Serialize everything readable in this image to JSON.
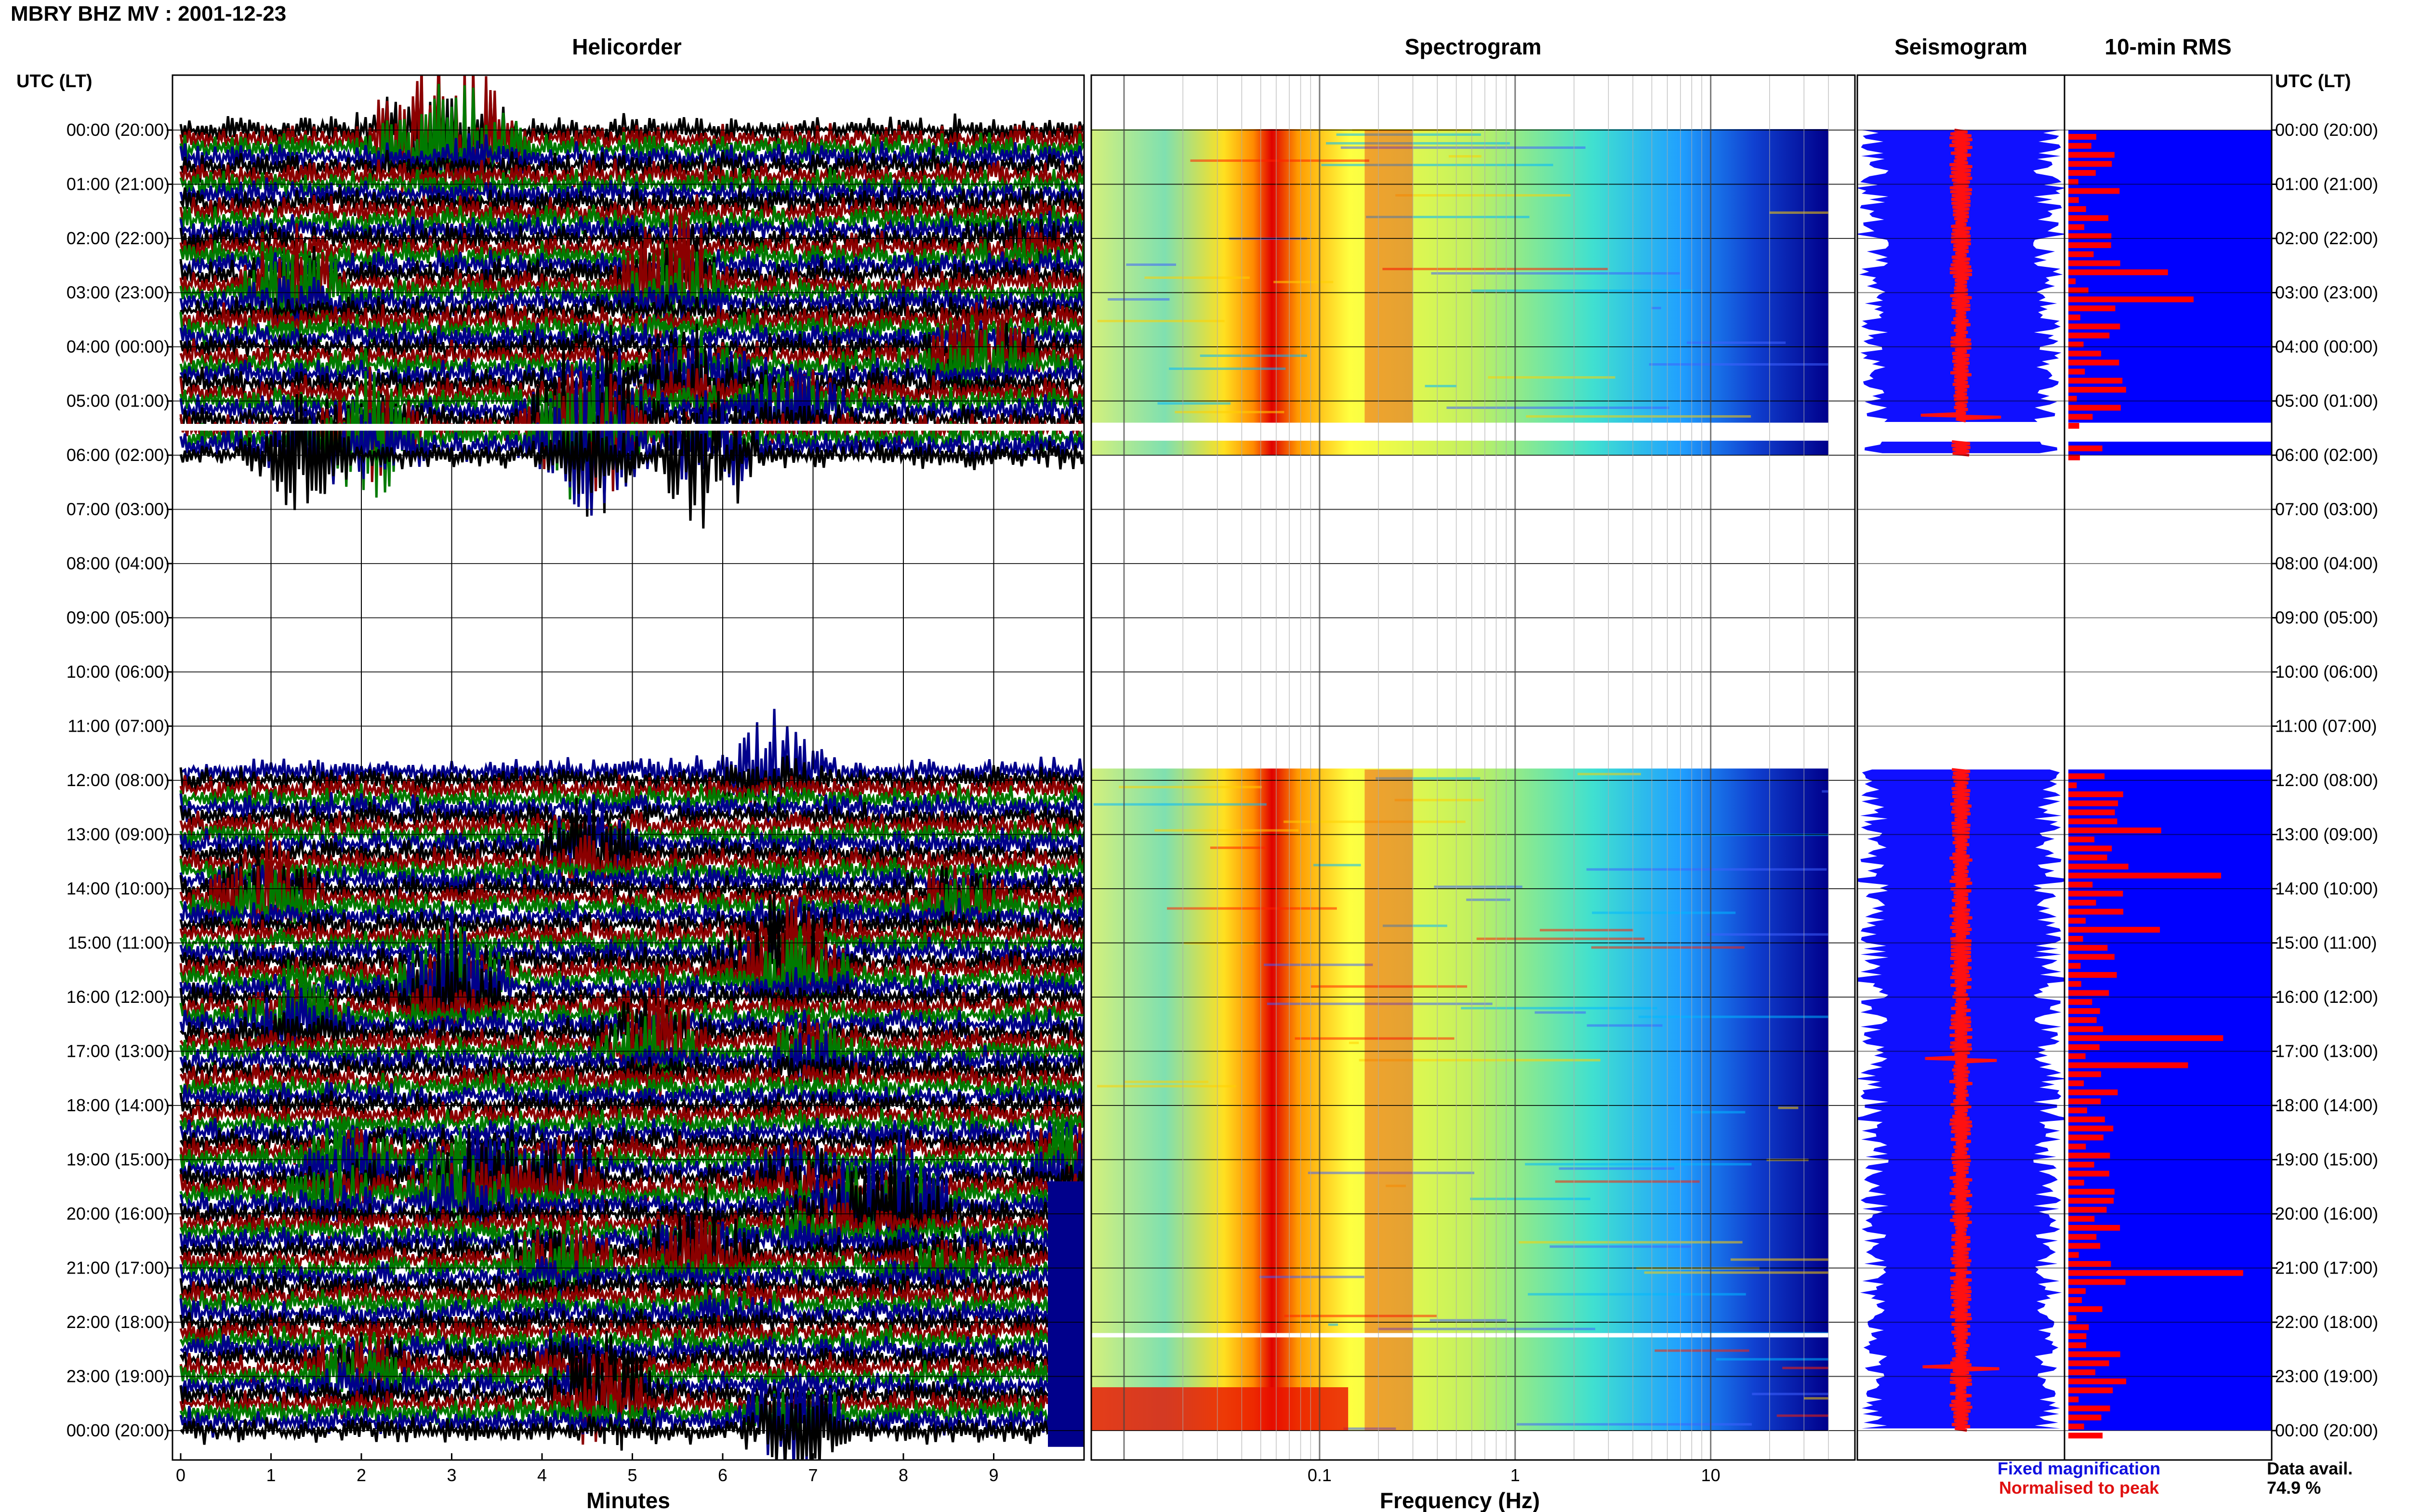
{
  "title": "MBRY BHZ MV : 2001-12-23",
  "panels": {
    "helicorder": "Helicorder",
    "spectrogram": "Spectrogram",
    "seismogram": "Seismogram",
    "rms": "10-min RMS"
  },
  "time_header": "UTC (LT)",
  "legend": {
    "fixed": "Fixed magnification",
    "normalised": "Normalised to peak"
  },
  "data_availability": {
    "label": "Data avail.",
    "value": "74.9 %"
  },
  "colors": {
    "trace_colors": [
      "#000000",
      "#8b0000",
      "#007a00",
      "#00008b"
    ],
    "fixed_magnification": "#0000ff",
    "normalised": "#ff0000",
    "spectrogram_low": "#00008b",
    "spectrogram_high": "#ff0000"
  },
  "chart_data": [
    {
      "type": "line",
      "panel": "Helicorder",
      "xlabel": "Minutes",
      "x_ticks": [
        "0",
        "1",
        "2",
        "3",
        "4",
        "5",
        "6",
        "7",
        "8",
        "9"
      ],
      "xlim": [
        0,
        10
      ],
      "y_ticks": [
        "00:00 (20:00)",
        "01:00 (21:00)",
        "02:00 (22:00)",
        "03:00 (23:00)",
        "04:00 (00:00)",
        "05:00 (01:00)",
        "06:00 (02:00)",
        "07:00 (03:00)",
        "08:00 (04:00)",
        "09:00 (05:00)",
        "10:00 (06:00)",
        "11:00 (07:00)",
        "12:00 (08:00)",
        "13:00 (09:00)",
        "14:00 (10:00)",
        "15:00 (11:00)",
        "16:00 (12:00)",
        "17:00 (13:00)",
        "18:00 (14:00)",
        "19:00 (15:00)",
        "20:00 (16:00)",
        "21:00 (17:00)",
        "22:00 (18:00)",
        "23:00 (19:00)",
        "00:00 (20:00)"
      ],
      "data_gap_hours": [
        6.0,
        11.8
      ]
    },
    {
      "type": "heatmap",
      "panel": "Spectrogram",
      "xlabel": "Frequency (Hz)",
      "x_scale": "log",
      "x_ticks": [
        "0.1",
        "1",
        "10"
      ],
      "xlim": [
        0.0068,
        40
      ],
      "dominant_band_hz": [
        0.17,
        0.3
      ]
    },
    {
      "type": "line",
      "panel": "Seismogram",
      "series": [
        {
          "name": "Fixed magnification",
          "color": "#0000ff"
        },
        {
          "name": "Normalised to peak",
          "color": "#ff0000"
        }
      ]
    },
    {
      "type": "bar",
      "panel": "10-min RMS",
      "series": [
        {
          "name": "Fixed magnification",
          "color": "#0000ff"
        },
        {
          "name": "Normalised to peak",
          "color": "#ff0000"
        }
      ]
    }
  ]
}
